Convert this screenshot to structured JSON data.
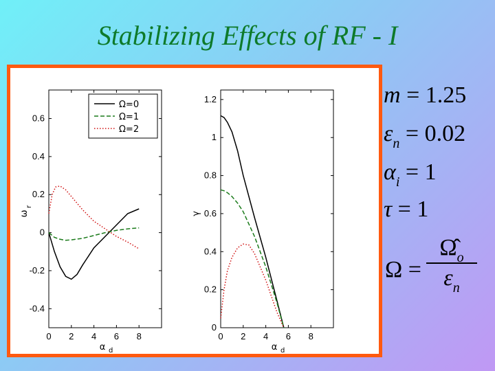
{
  "slide": {
    "title": "Stabilizing Effects of RF - I",
    "colors": {
      "title": "#0e7a2a",
      "frame": "#ff5a10"
    }
  },
  "equations": {
    "m": {
      "lhs": "m",
      "value": "1.25"
    },
    "eps_n": {
      "lhs": "ε",
      "sub": "n",
      "value": "0.02"
    },
    "alpha_i": {
      "lhs": "α",
      "sub": "i",
      "value": "1"
    },
    "tau": {
      "lhs": "τ",
      "value": "1"
    },
    "omega": {
      "lhs": "Ω",
      "num": "Ω̂",
      "num_sub": "o",
      "den": "ε",
      "den_sub": "n"
    }
  },
  "chart_data": [
    {
      "type": "line",
      "xlabel": "α",
      "xlabel_sub": "d",
      "ylabel": "ω",
      "ylabel_sub": "r",
      "xlim": [
        0,
        10
      ],
      "ylim": [
        -0.5,
        0.75
      ],
      "xticks": [
        0,
        2,
        4,
        6,
        8
      ],
      "yticks": [
        -0.4,
        -0.2,
        0,
        0.2,
        0.4,
        0.6
      ],
      "legend": {
        "position": "top-right",
        "entries": [
          "Ω=0",
          "Ω=1",
          "Ω=2"
        ]
      },
      "series": [
        {
          "name": "Ω=0",
          "color": "#000000",
          "style": "solid",
          "x": [
            0,
            0.5,
            1,
            1.5,
            2,
            2.5,
            3,
            4,
            5,
            6,
            7,
            8
          ],
          "y": [
            0,
            -0.1,
            -0.18,
            -0.23,
            -0.245,
            -0.22,
            -0.17,
            -0.08,
            -0.02,
            0.04,
            0.1,
            0.125
          ]
        },
        {
          "name": "Ω=1",
          "color": "#1a7a1a",
          "style": "dashed",
          "x": [
            0,
            0.5,
            1,
            1.5,
            2,
            3,
            4,
            5,
            6,
            7,
            8
          ],
          "y": [
            0,
            -0.025,
            -0.035,
            -0.04,
            -0.038,
            -0.03,
            -0.015,
            0,
            0.012,
            0.02,
            0.025
          ]
        },
        {
          "name": "Ω=2",
          "color": "#d01010",
          "style": "dotted",
          "x": [
            0,
            0.3,
            0.6,
            1,
            1.5,
            2,
            3,
            4,
            5,
            6,
            7,
            8
          ],
          "y": [
            0.1,
            0.2,
            0.24,
            0.245,
            0.225,
            0.19,
            0.12,
            0.06,
            0.02,
            -0.02,
            -0.05,
            -0.085
          ]
        }
      ]
    },
    {
      "type": "line",
      "xlabel": "α",
      "xlabel_sub": "d",
      "ylabel": "γ",
      "ylabel_sub": "",
      "xlim": [
        0,
        10
      ],
      "ylim": [
        0,
        1.25
      ],
      "xticks": [
        0,
        2,
        4,
        6,
        8
      ],
      "yticks": [
        0,
        0.2,
        0.4,
        0.6,
        0.8,
        1,
        1.2
      ],
      "series": [
        {
          "name": "Ω=0",
          "color": "#000000",
          "style": "solid",
          "x": [
            0,
            0.3,
            0.6,
            1,
            1.5,
            2,
            3,
            4,
            5,
            5.6
          ],
          "y": [
            1.115,
            1.105,
            1.08,
            1.03,
            0.93,
            0.8,
            0.58,
            0.37,
            0.14,
            0
          ]
        },
        {
          "name": "Ω=1",
          "color": "#1a7a1a",
          "style": "dashed",
          "x": [
            0,
            0.3,
            0.6,
            1,
            1.5,
            2,
            3,
            4,
            5,
            5.6
          ],
          "y": [
            0.725,
            0.72,
            0.71,
            0.69,
            0.655,
            0.61,
            0.48,
            0.32,
            0.13,
            0
          ]
        },
        {
          "name": "Ω=2",
          "color": "#d01010",
          "style": "dotted",
          "x": [
            0,
            0.3,
            0.6,
            1,
            1.5,
            2,
            2.5,
            3,
            4,
            5,
            5.6
          ],
          "y": [
            0.05,
            0.2,
            0.3,
            0.37,
            0.42,
            0.44,
            0.435,
            0.39,
            0.25,
            0.08,
            0
          ]
        }
      ]
    }
  ]
}
